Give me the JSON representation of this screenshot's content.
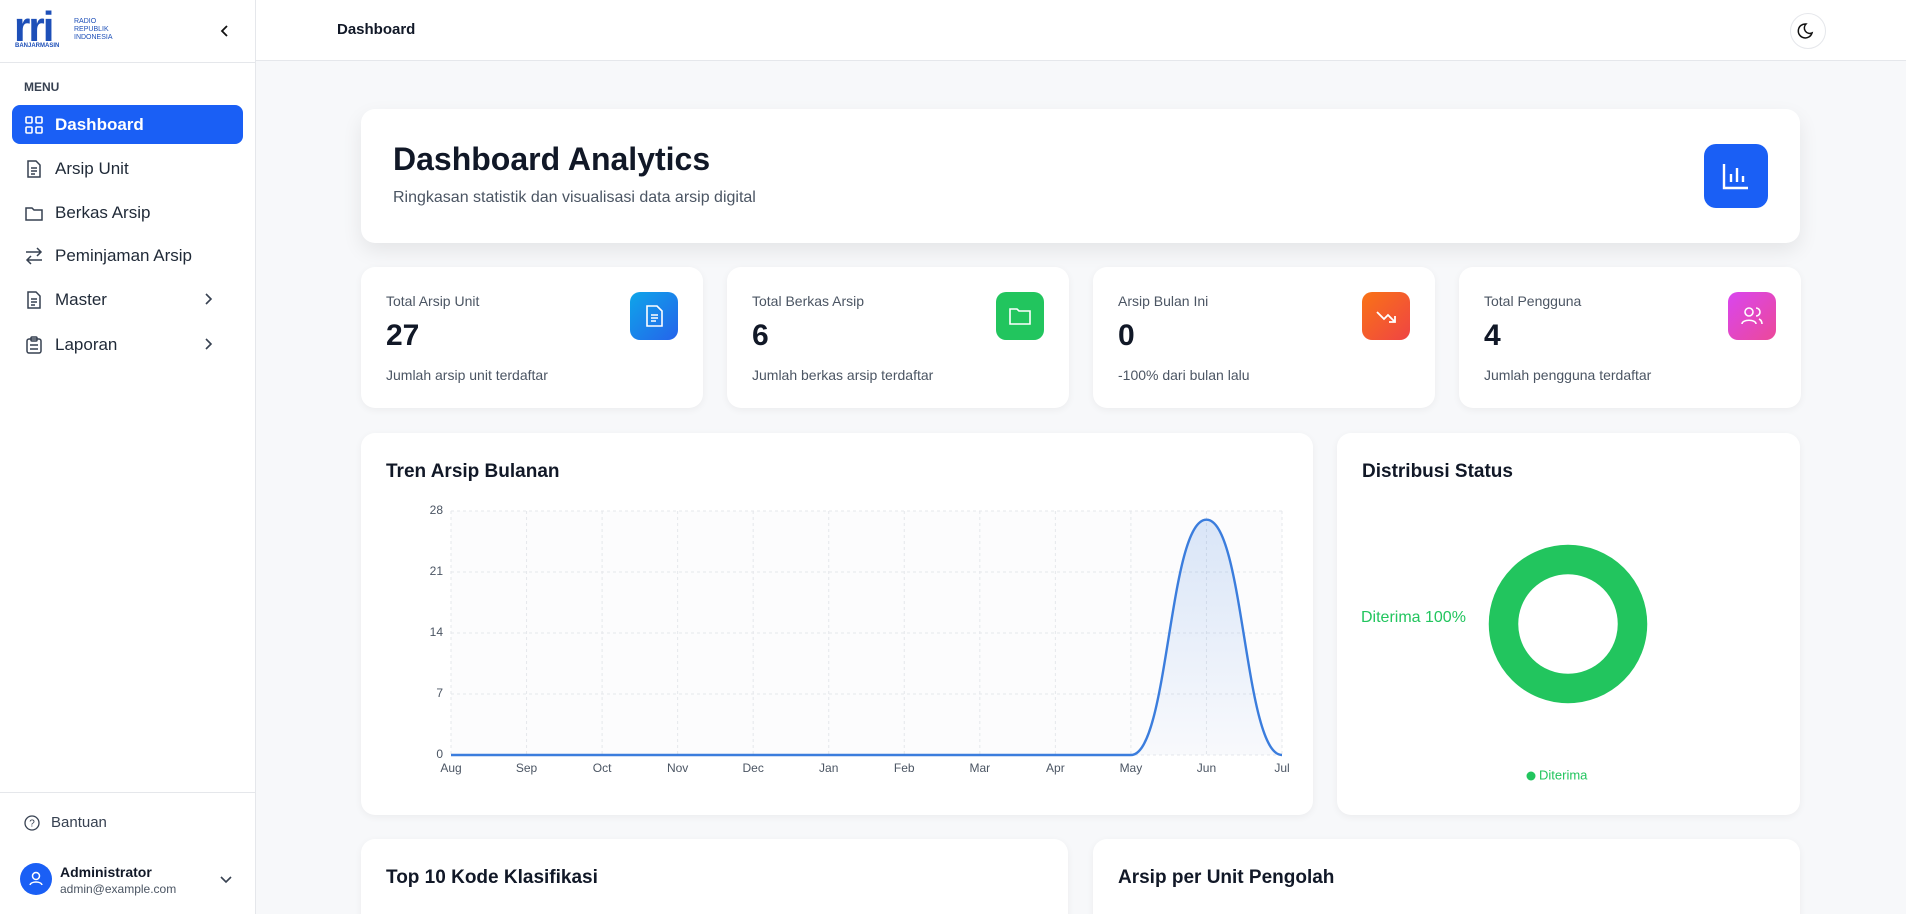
{
  "sidebar": {
    "logo": {
      "brand": "rri",
      "lines": [
        "RADIO",
        "REPUBLIK",
        "INDONESIA"
      ],
      "station": "BANJARMASIN"
    },
    "menu_label": "MENU",
    "menu": [
      {
        "label": "Dashboard"
      },
      {
        "label": "Arsip Unit"
      },
      {
        "label": "Berkas Arsip"
      },
      {
        "label": "Peminjaman Arsip"
      },
      {
        "label": "Master"
      },
      {
        "label": "Laporan"
      }
    ],
    "help": "Bantuan",
    "user": {
      "name": "Administrator",
      "email": "admin@example.com"
    }
  },
  "header": {
    "title": "Dashboard"
  },
  "hero": {
    "title": "Dashboard Analytics",
    "subtitle": "Ringkasan statistik dan visualisasi data arsip digital"
  },
  "stats": [
    {
      "label": "Total Arsip Unit",
      "value": 27,
      "note": "Jumlah arsip unit terdaftar"
    },
    {
      "label": "Total Berkas Arsip",
      "value": 6,
      "note": "Jumlah berkas arsip terdaftar"
    },
    {
      "label": "Arsip Bulan Ini",
      "value": 0,
      "note": "-100% dari bulan lalu"
    },
    {
      "label": "Total Pengguna",
      "value": 4,
      "note": "Jumlah pengguna terdaftar"
    }
  ],
  "chart_data": [
    {
      "type": "line",
      "title": "Tren Arsip Bulanan",
      "categories": [
        "Aug",
        "Sep",
        "Oct",
        "Nov",
        "Dec",
        "Jan",
        "Feb",
        "Mar",
        "Apr",
        "May",
        "Jun",
        "Jul"
      ],
      "values": [
        0,
        0,
        0,
        0,
        0,
        0,
        0,
        0,
        0,
        0,
        27,
        0
      ],
      "color": "#3b7ddd",
      "ylim": [
        0,
        28
      ],
      "yticks": [
        0,
        7,
        14,
        21,
        28
      ],
      "grid": true
    },
    {
      "type": "pie",
      "title": "Distribusi Status",
      "categories": [
        "Diterima"
      ],
      "values": [
        100
      ],
      "value_labels": [
        "Diterima 100%"
      ],
      "colors": [
        "#22c55e"
      ],
      "legend": "bottom"
    }
  ],
  "panels": [
    {
      "title": "Top 10 Kode Klasifikasi"
    },
    {
      "title": "Arsip per Unit Pengolah"
    }
  ]
}
